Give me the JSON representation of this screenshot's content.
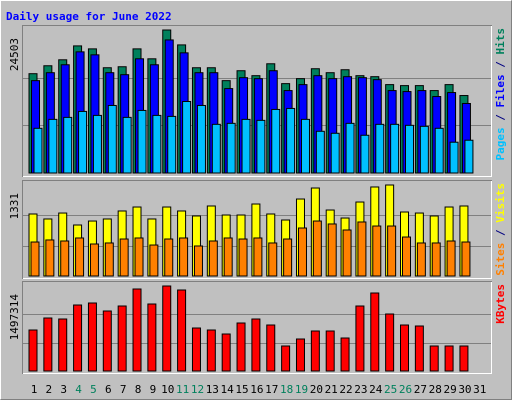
{
  "chart_data": {
    "type": "bar",
    "title": "Daily usage for June 2022",
    "categories": [
      "1",
      "2",
      "3",
      "4",
      "5",
      "6",
      "7",
      "8",
      "9",
      "10",
      "11",
      "12",
      "13",
      "14",
      "15",
      "16",
      "17",
      "18",
      "19",
      "20",
      "21",
      "22",
      "23",
      "24",
      "25",
      "26",
      "27",
      "28",
      "29",
      "30",
      "31"
    ],
    "category_colors": [
      "#000000",
      "#000000",
      "#000000",
      "#00805c",
      "#00805c",
      "#000000",
      "#000000",
      "#000000",
      "#000000",
      "#000000",
      "#00805c",
      "#00805c",
      "#000000",
      "#000000",
      "#000000",
      "#000000",
      "#000000",
      "#00805c",
      "#00805c",
      "#000000",
      "#000000",
      "#000000",
      "#000000",
      "#000000",
      "#00805c",
      "#00805c",
      "#000000",
      "#000000",
      "#000000",
      "#000000",
      "#000000"
    ],
    "legend_separator": " / ",
    "panels": [
      {
        "ylim": [
          0,
          24503
        ],
        "yticks": [
          24503
        ],
        "gridlines": [
          8168,
          16335
        ],
        "series": [
          {
            "name": "Hits",
            "color": "#00805c",
            "values": [
              17016,
              18377,
              19398,
              21780,
              21270,
              18037,
              18207,
              21270,
              19568,
              24503,
              21950,
              18037,
              18037,
              15825,
              17526,
              16676,
              18717,
              15314,
              16165,
              17867,
              17186,
              17696,
              16676,
              16505,
              15144,
              14974,
              14974,
              14123,
              15144,
              13273,
              null
            ]
          },
          {
            "name": "Files",
            "color": "#0000ff",
            "values": [
              15825,
              17186,
              18547,
              20760,
              20249,
              17186,
              16846,
              19568,
              18547,
              22801,
              20589,
              17186,
              17186,
              14464,
              16335,
              16165,
              17526,
              14123,
              15144,
              16676,
              16165,
              16505,
              16335,
              15995,
              14123,
              13953,
              14123,
              13102,
              13783,
              11911,
              null
            ]
          },
          {
            "name": "Pages",
            "color": "#00c0ff",
            "values": [
              7657,
              9189,
              9529,
              10550,
              9869,
              11571,
              9529,
              10720,
              9869,
              9699,
              12252,
              11571,
              8338,
              8508,
              9189,
              9018,
              10890,
              11060,
              9189,
              7147,
              6806,
              8508,
              6466,
              8338,
              8338,
              8168,
              7997,
              7657,
              5275,
              5615,
              null
            ]
          }
        ]
      },
      {
        "ylim": [
          0,
          1331
        ],
        "yticks": [
          1331
        ],
        "gridlines": [
          444,
          887
        ],
        "series": [
          {
            "name": "Visits",
            "color": "#ffff00",
            "values": [
              907,
              834,
              921,
              746,
              804,
              834,
              951,
              1009,
              834,
              1009,
              951,
              878,
              1024,
              892,
              892,
              1053,
              907,
              819,
              1126,
              1287,
              965,
              848,
              1082,
              1302,
              1331,
              936,
              921,
              878,
              1009,
              1024,
              null
            ]
          },
          {
            "name": "Sites",
            "color": "#ff8000",
            "values": [
              497,
              527,
              512,
              556,
              468,
              483,
              541,
              556,
              453,
              541,
              556,
              439,
              512,
              556,
              541,
              556,
              483,
              541,
              702,
              804,
              761,
              673,
              790,
              731,
              731,
              570,
              483,
              483,
              512,
              497,
              null
            ]
          }
        ]
      },
      {
        "ylim": [
          0,
          1497314
        ],
        "yticks": [
          1497314
        ],
        "gridlines": [
          499105,
          998209
        ],
        "series": [
          {
            "name": "KBytes",
            "color": "#ff0000",
            "values": [
              722215,
              933595,
              915980,
              1162590,
              1197820,
              1056900,
              1144975,
              1444430,
              1180205,
              1497314,
              1426815,
              757445,
              722215,
              651755,
              845520,
              915980,
              810290,
              440375,
              563680,
              704600,
              704600,
              581295,
              1144975,
              1373970,
              1004055,
              810290,
              792675,
              440375,
              440375,
              440375,
              null
            ]
          }
        ]
      }
    ]
  }
}
